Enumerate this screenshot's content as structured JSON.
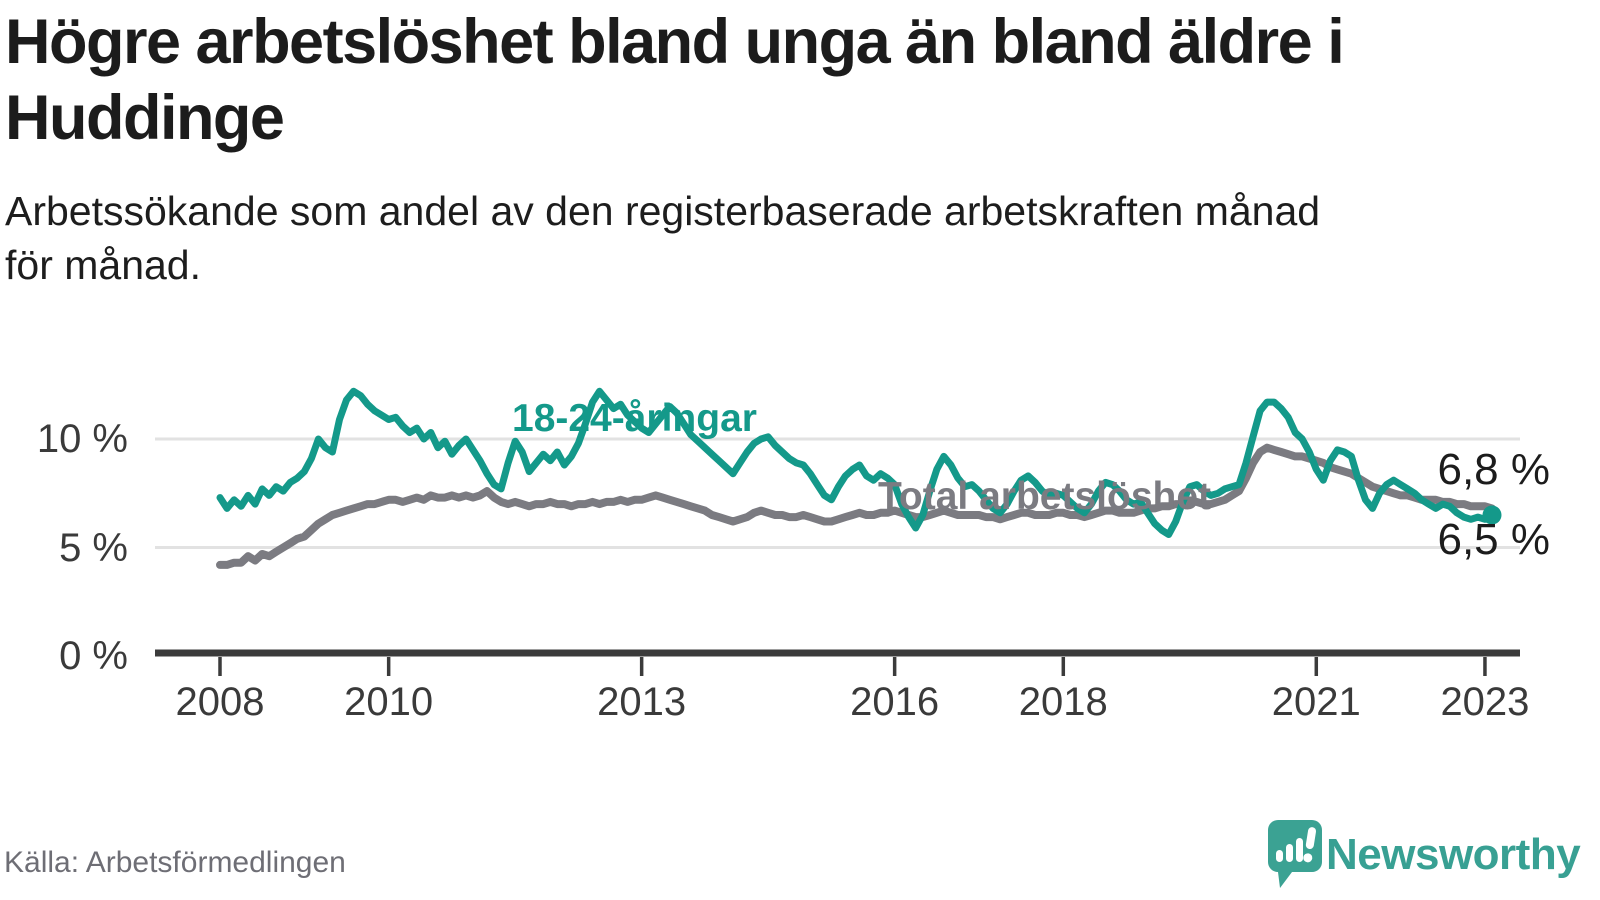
{
  "header": {
    "title_lines": [
      "Högre arbetslöshet bland unga än bland äldre i",
      "Huddinge"
    ],
    "subtitle_lines": [
      "Arbetssökande som andel av den registerbaserade arbetskraften månad",
      "för månad."
    ]
  },
  "chart_data": {
    "type": "line",
    "title": "Högre arbetslöshet bland unga än bland äldre i Huddinge",
    "subtitle": "Arbetssökande som andel av den registerbaserade arbetskraften månad för månad.",
    "x_start": "2008-01",
    "frequency": "monthly",
    "xlim_years": [
      2008,
      2023.17
    ],
    "ylim": [
      0,
      13.5
    ],
    "grid": "horizontal",
    "y_ticks": [
      {
        "value": 0,
        "label": "0 %"
      },
      {
        "value": 5,
        "label": "5 %"
      },
      {
        "value": 10,
        "label": "10 %"
      }
    ],
    "x_ticks": [
      {
        "year": 2008,
        "label": "2008"
      },
      {
        "year": 2010,
        "label": "2010"
      },
      {
        "year": 2013,
        "label": "2013"
      },
      {
        "year": 2016,
        "label": "2016"
      },
      {
        "year": 2018,
        "label": "2018"
      },
      {
        "year": 2021,
        "label": "2021"
      },
      {
        "year": 2023,
        "label": "2023"
      }
    ],
    "series": [
      {
        "name": "Total arbetslöshet",
        "color": "#7b7b81",
        "end_value_label": "6,8 %",
        "values": [
          4.2,
          4.2,
          4.3,
          4.3,
          4.6,
          4.4,
          4.7,
          4.6,
          4.8,
          5.0,
          5.2,
          5.4,
          5.5,
          5.8,
          6.1,
          6.3,
          6.5,
          6.6,
          6.7,
          6.8,
          6.9,
          7.0,
          7.0,
          7.1,
          7.2,
          7.2,
          7.1,
          7.2,
          7.3,
          7.2,
          7.4,
          7.3,
          7.3,
          7.4,
          7.3,
          7.4,
          7.3,
          7.4,
          7.6,
          7.3,
          7.1,
          7.0,
          7.1,
          7.0,
          6.9,
          7.0,
          7.0,
          7.1,
          7.0,
          7.0,
          6.9,
          7.0,
          7.0,
          7.1,
          7.0,
          7.1,
          7.1,
          7.2,
          7.1,
          7.2,
          7.2,
          7.3,
          7.4,
          7.3,
          7.2,
          7.1,
          7.0,
          6.9,
          6.8,
          6.7,
          6.5,
          6.4,
          6.3,
          6.2,
          6.3,
          6.4,
          6.6,
          6.7,
          6.6,
          6.5,
          6.5,
          6.4,
          6.4,
          6.5,
          6.4,
          6.3,
          6.2,
          6.2,
          6.3,
          6.4,
          6.5,
          6.6,
          6.5,
          6.5,
          6.6,
          6.6,
          6.7,
          6.6,
          6.5,
          6.4,
          6.4,
          6.5,
          6.6,
          6.7,
          6.6,
          6.5,
          6.5,
          6.5,
          6.5,
          6.4,
          6.4,
          6.3,
          6.4,
          6.5,
          6.6,
          6.6,
          6.5,
          6.5,
          6.5,
          6.6,
          6.6,
          6.5,
          6.5,
          6.4,
          6.5,
          6.6,
          6.7,
          6.7,
          6.6,
          6.6,
          6.6,
          6.7,
          6.8,
          6.8,
          6.9,
          6.9,
          7.0,
          7.0,
          7.1,
          7.1,
          7.0,
          7.0,
          7.1,
          7.2,
          7.4,
          7.6,
          8.2,
          8.9,
          9.4,
          9.6,
          9.5,
          9.4,
          9.3,
          9.2,
          9.2,
          9.1,
          9.0,
          8.9,
          8.7,
          8.6,
          8.5,
          8.4,
          8.2,
          8.0,
          7.8,
          7.7,
          7.6,
          7.5,
          7.4,
          7.4,
          7.3,
          7.2,
          7.2,
          7.2,
          7.1,
          7.1,
          7.0,
          7.0,
          6.9,
          6.9,
          6.9,
          6.8
        ]
      },
      {
        "name": "18-24-åringar",
        "color": "#14998a",
        "end_value_label": "6,5 %",
        "end_dot": true,
        "values": [
          7.3,
          6.8,
          7.2,
          6.9,
          7.4,
          7.0,
          7.7,
          7.4,
          7.8,
          7.6,
          8.0,
          8.2,
          8.5,
          9.1,
          10.0,
          9.6,
          9.4,
          10.9,
          11.8,
          12.2,
          12.0,
          11.6,
          11.3,
          11.1,
          10.9,
          11.0,
          10.6,
          10.3,
          10.5,
          10.0,
          10.3,
          9.6,
          9.9,
          9.3,
          9.7,
          10.0,
          9.5,
          9.0,
          8.4,
          7.9,
          7.7,
          8.9,
          9.9,
          9.4,
          8.5,
          8.9,
          9.3,
          9.0,
          9.4,
          8.8,
          9.2,
          9.8,
          10.7,
          11.7,
          12.2,
          11.8,
          11.4,
          11.6,
          11.1,
          10.8,
          10.5,
          10.3,
          10.7,
          11.1,
          11.5,
          11.2,
          10.7,
          10.2,
          9.9,
          9.6,
          9.3,
          9.0,
          8.7,
          8.4,
          8.9,
          9.4,
          9.8,
          10.0,
          10.1,
          9.7,
          9.4,
          9.1,
          8.9,
          8.8,
          8.4,
          7.9,
          7.4,
          7.2,
          7.8,
          8.3,
          8.6,
          8.8,
          8.3,
          8.1,
          8.4,
          8.2,
          7.9,
          7.0,
          6.4,
          5.9,
          6.5,
          7.6,
          8.6,
          9.2,
          8.8,
          8.2,
          7.8,
          7.9,
          7.6,
          7.2,
          6.8,
          6.6,
          7.0,
          7.6,
          8.1,
          8.3,
          8.0,
          7.6,
          7.4,
          7.5,
          7.4,
          7.1,
          6.8,
          6.6,
          7.0,
          7.6,
          8.0,
          7.9,
          7.6,
          7.2,
          7.0,
          7.1,
          6.6,
          6.1,
          5.8,
          5.6,
          6.2,
          7.1,
          7.8,
          7.9,
          7.6,
          7.4,
          7.5,
          7.7,
          7.8,
          7.9,
          8.9,
          10.1,
          11.3,
          11.7,
          11.7,
          11.4,
          11.0,
          10.3,
          10.0,
          9.4,
          8.6,
          8.1,
          9.0,
          9.5,
          9.4,
          9.2,
          8.1,
          7.2,
          6.8,
          7.5,
          7.9,
          8.1,
          7.9,
          7.7,
          7.5,
          7.2,
          7.0,
          6.8,
          7.0,
          6.9,
          6.6,
          6.4,
          6.3,
          6.4,
          6.3,
          6.5
        ]
      }
    ]
  },
  "footer": {
    "source": "Källa: Arbetsförmedlingen",
    "brand": "Newsworthy"
  },
  "colors": {
    "accent_teal": "#14998a",
    "line_gray": "#7b7b81",
    "axis_dark": "#3b3b3b",
    "grid_light": "#e2e2e2",
    "logo_teal": "#3ba293",
    "text_dark": "#1c1c1c"
  }
}
